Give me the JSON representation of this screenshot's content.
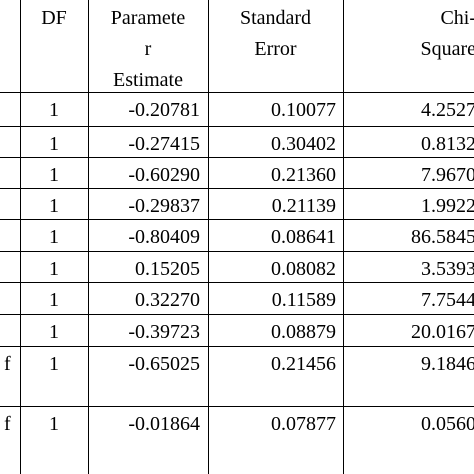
{
  "table": {
    "header": {
      "df": "DF",
      "estimate": [
        "Paramete",
        "r",
        "Estimate"
      ],
      "std_error": [
        "Standard",
        "Error"
      ],
      "chi_square": [
        "Chi-",
        "Square"
      ]
    },
    "rows": [
      {
        "df": "1",
        "estimate": "-0.20781",
        "std_error": "0.10077",
        "chi_square": "4.2527"
      },
      {
        "df": "1",
        "estimate": "-0.27415",
        "std_error": "0.30402",
        "chi_square": "0.8132"
      },
      {
        "df": "1",
        "estimate": "-0.60290",
        "std_error": "0.21360",
        "chi_square": "7.9670"
      },
      {
        "df": "1",
        "estimate": "-0.29837",
        "std_error": "0.21139",
        "chi_square": "1.9922"
      },
      {
        "df": "1",
        "estimate": "-0.80409",
        "std_error": "0.08641",
        "chi_square": "86.5845"
      },
      {
        "df": "1",
        "estimate": "0.15205",
        "std_error": "0.08082",
        "chi_square": "3.5393"
      },
      {
        "df": "1",
        "estimate": "0.32270",
        "std_error": "0.11589",
        "chi_square": "7.7544"
      },
      {
        "df": "1",
        "estimate": "-0.39723",
        "std_error": "0.08879",
        "chi_square": "20.0167"
      },
      {
        "label": "f",
        "df": "1",
        "estimate": "-0.65025",
        "std_error": "0.21456",
        "chi_square": "9.1846"
      },
      {
        "label": "f",
        "df": "1",
        "estimate": "-0.01864",
        "std_error": "0.07877",
        "chi_square": "0.0560"
      }
    ]
  }
}
